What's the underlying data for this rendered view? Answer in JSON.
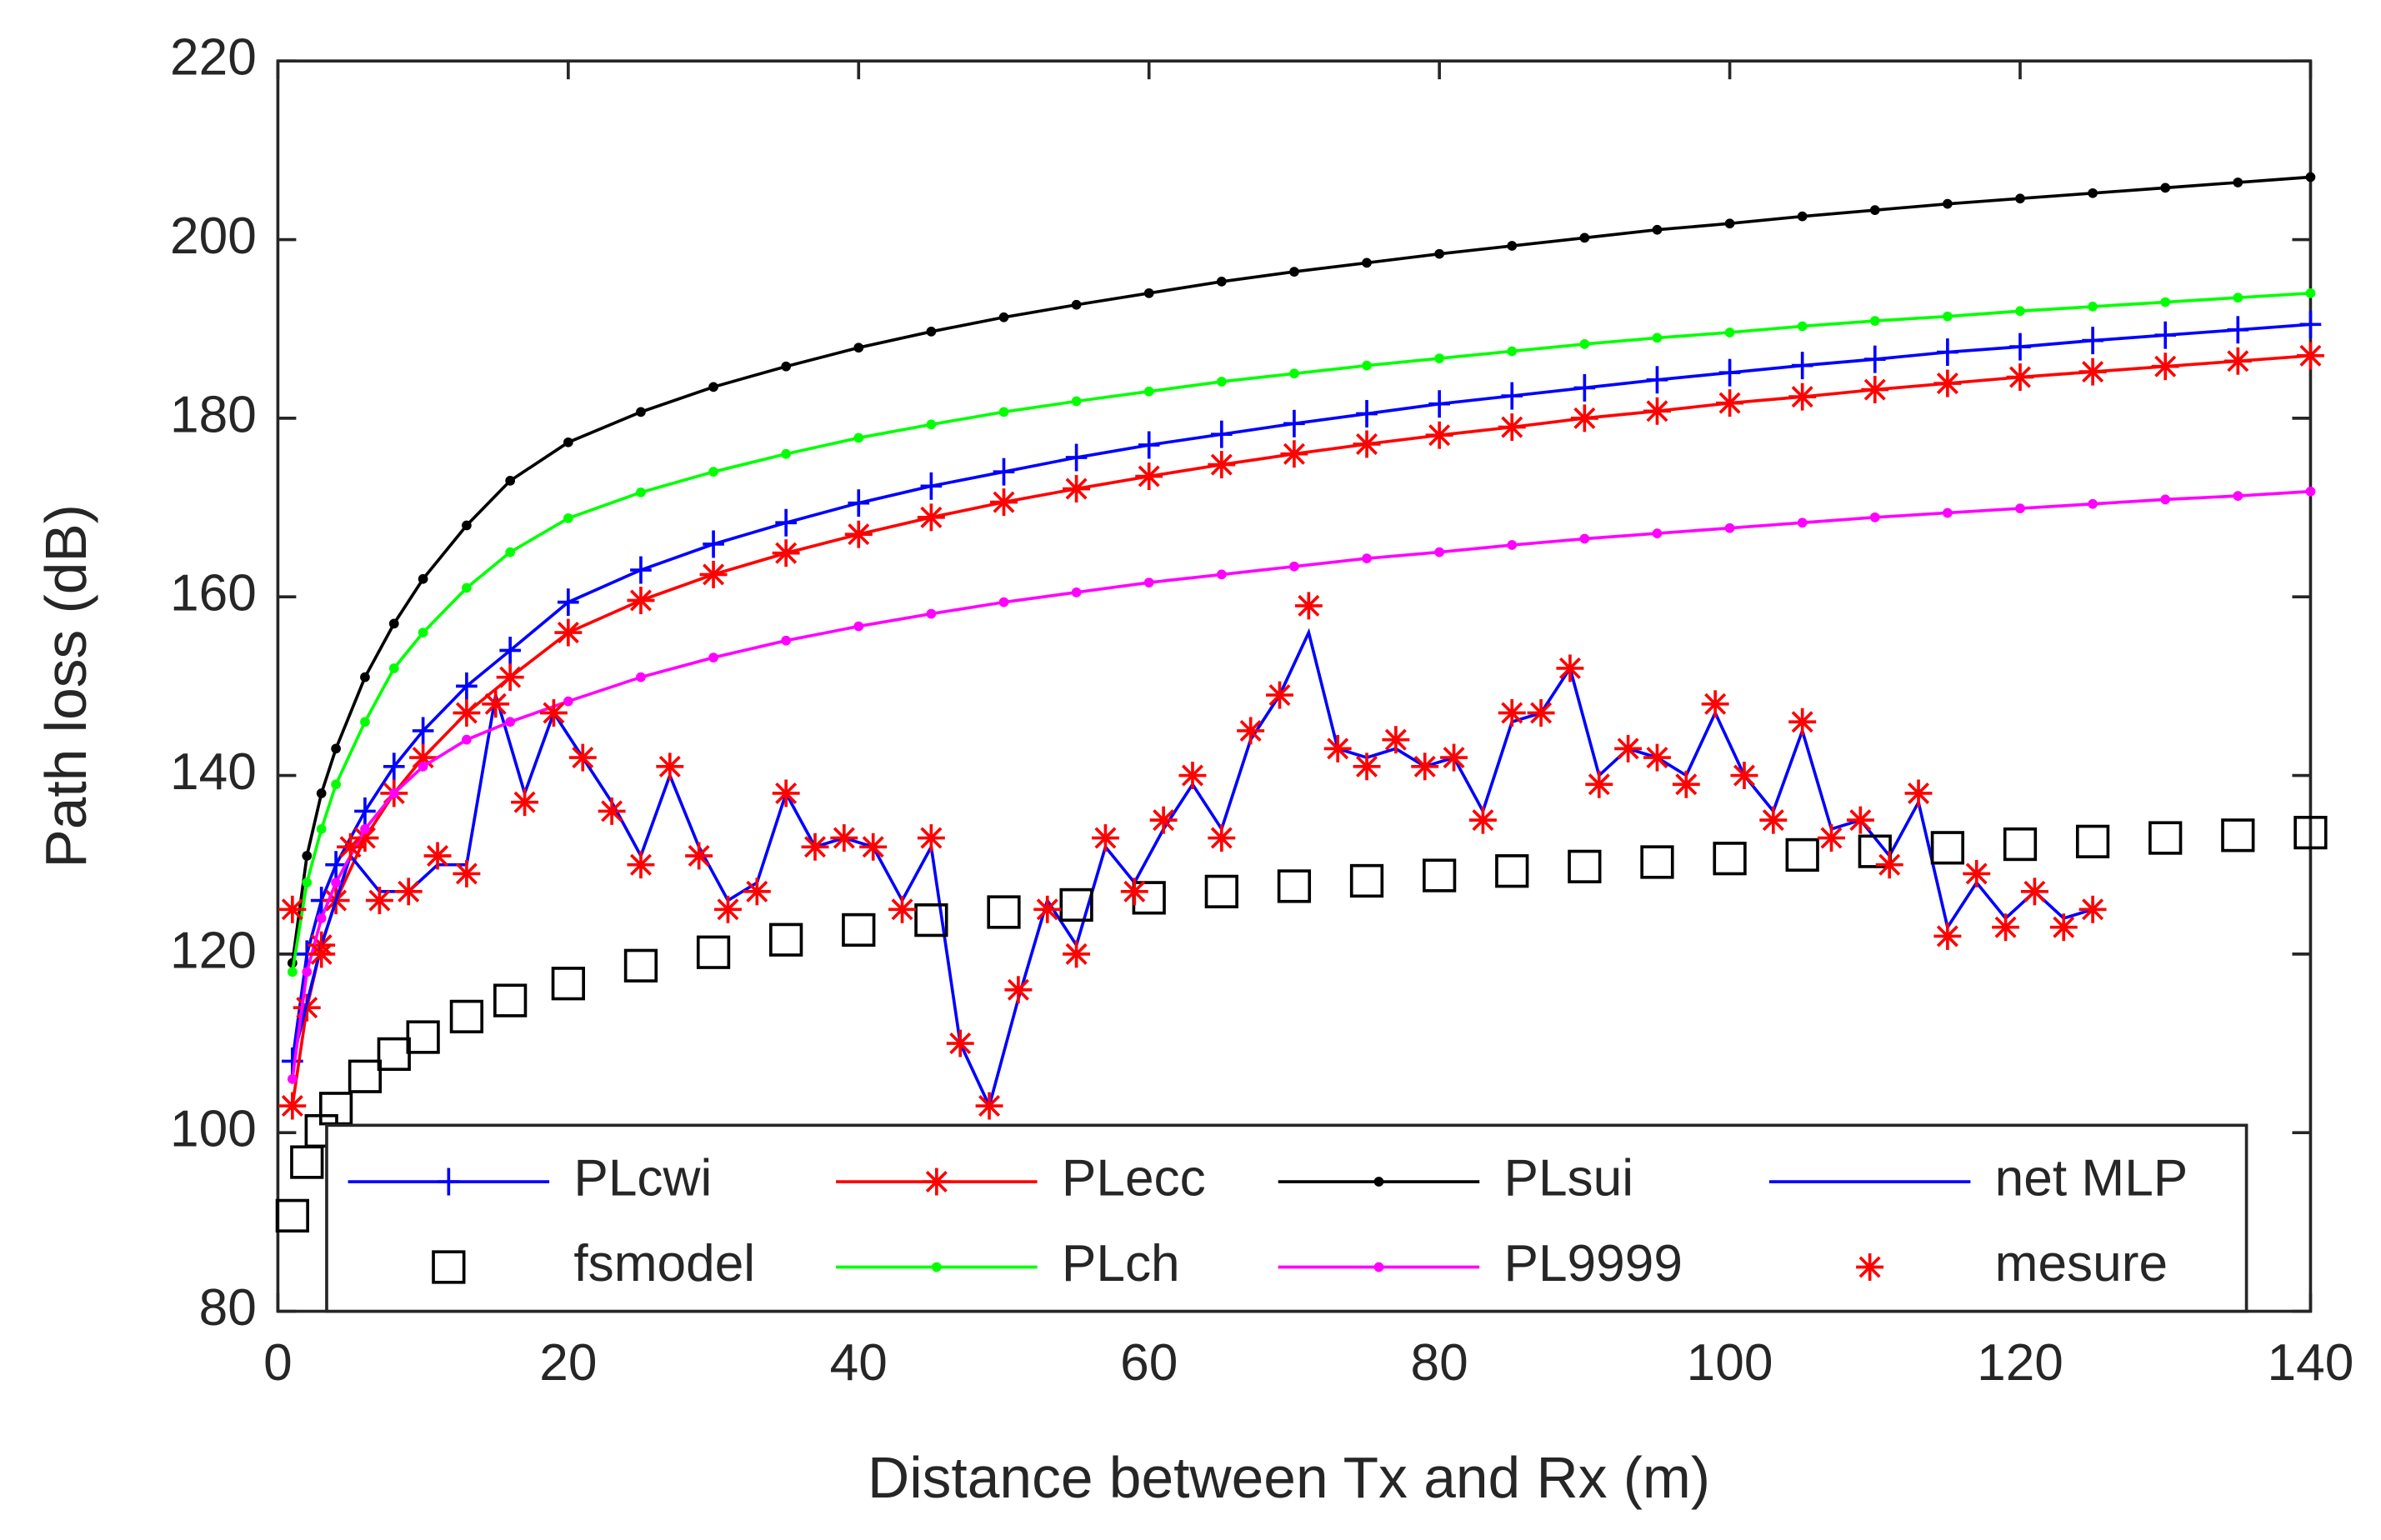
{
  "chart_data": {
    "type": "line",
    "xlabel": "Distance between Tx and Rx (m)",
    "ylabel": "Path loss (dB)",
    "xlim": [
      0,
      140
    ],
    "xticks": [
      0,
      20,
      40,
      60,
      80,
      100,
      120,
      140
    ],
    "ylim": [
      80,
      220
    ],
    "yticks": [
      80,
      100,
      120,
      140,
      160,
      180,
      200,
      220
    ],
    "legend": "south",
    "x": [
      1,
      2,
      3,
      4,
      6,
      8,
      10,
      13,
      16,
      20,
      25,
      30,
      35,
      40,
      45,
      50,
      55,
      60,
      65,
      70,
      75,
      80,
      85,
      90,
      95,
      100,
      105,
      110,
      115,
      120,
      125,
      130,
      135,
      140
    ],
    "series": [
      {
        "name": "PLcwi",
        "color": "#0000ff",
        "marker": "plus",
        "line": true,
        "values": [
          108,
          120,
          126,
          130,
          136,
          141,
          145,
          150,
          154,
          159.4,
          163.0,
          165.9,
          168.3,
          170.5,
          172.4,
          174.0,
          175.6,
          177.0,
          178.2,
          179.4,
          180.5,
          181.6,
          182.5,
          183.4,
          184.3,
          185.1,
          185.9,
          186.6,
          187.4,
          188.0,
          188.7,
          189.3,
          189.9,
          190.5
        ]
      },
      {
        "name": "PLecc",
        "color": "#ff0000",
        "marker": "asterisk",
        "line": true,
        "values": [
          103,
          114,
          121,
          126,
          133,
          138,
          142,
          147,
          151,
          156,
          159.6,
          162.5,
          164.9,
          167.0,
          168.9,
          170.6,
          172.1,
          173.5,
          174.8,
          176.0,
          177.1,
          178.1,
          179.0,
          180.0,
          180.8,
          181.7,
          182.4,
          183.2,
          183.9,
          184.6,
          185.2,
          185.8,
          186.4,
          187.0
        ]
      },
      {
        "name": "PLsui",
        "color": "#000000",
        "marker": "dot",
        "line": true,
        "values": [
          119,
          131,
          138,
          143,
          151,
          157,
          162,
          168,
          173,
          177.3,
          180.7,
          183.5,
          185.8,
          187.9,
          189.7,
          191.3,
          192.7,
          194.0,
          195.3,
          196.4,
          197.4,
          198.4,
          199.3,
          200.2,
          201.1,
          201.8,
          202.6,
          203.3,
          204.0,
          204.6,
          205.2,
          205.8,
          206.4,
          207.0
        ]
      },
      {
        "name": "net MLP",
        "color": "#0000ff",
        "marker": "none",
        "line": true,
        "x": [
          1,
          3,
          5,
          7,
          9,
          11,
          13,
          15,
          17,
          19,
          21,
          23,
          25,
          27,
          29,
          31,
          33,
          35,
          37,
          39,
          41,
          43,
          45,
          47,
          49,
          51,
          53,
          55,
          57,
          59,
          61,
          63,
          65,
          67,
          69,
          71,
          73,
          75,
          77,
          79,
          81,
          83,
          85,
          87,
          89,
          91,
          93,
          95,
          97,
          99,
          101,
          103,
          105,
          107,
          109,
          111,
          113,
          115,
          117,
          119,
          121,
          123,
          125
        ],
        "values": [
          108,
          121,
          131,
          127,
          127,
          130,
          130,
          149,
          138,
          147,
          142,
          137,
          131,
          140,
          132,
          126,
          128,
          138,
          132,
          133,
          132,
          126,
          132,
          110,
          103,
          115,
          126,
          121,
          132,
          128,
          134,
          139,
          134,
          144,
          149,
          156,
          143,
          142,
          143,
          141,
          142,
          136,
          146,
          147,
          152,
          140,
          143,
          142,
          140,
          147,
          140,
          136,
          145,
          134,
          135,
          131,
          137,
          123,
          128,
          124,
          127,
          124,
          125
        ]
      },
      {
        "name": "fsmodel",
        "color": "#000000",
        "marker": "square",
        "line": false,
        "values": [
          90.7,
          96.7,
          100.2,
          102.7,
          106.3,
          108.8,
          110.7,
          113.0,
          114.8,
          116.7,
          118.7,
          120.2,
          121.6,
          122.7,
          123.8,
          124.7,
          125.5,
          126.3,
          127.0,
          127.6,
          128.2,
          128.8,
          129.3,
          129.8,
          130.3,
          130.7,
          131.1,
          131.5,
          131.9,
          132.3,
          132.6,
          133.0,
          133.3,
          133.6
        ]
      },
      {
        "name": "PLch",
        "color": "#00ff00",
        "marker": "dot",
        "line": true,
        "values": [
          118,
          128,
          134,
          139,
          146,
          152,
          156,
          161,
          165,
          168.8,
          171.7,
          174.0,
          176.0,
          177.8,
          179.3,
          180.7,
          181.9,
          183.0,
          184.1,
          185.0,
          185.9,
          186.7,
          187.5,
          188.3,
          189.0,
          189.6,
          190.3,
          190.9,
          191.4,
          192.0,
          192.5,
          193.0,
          193.5,
          194.0
        ]
      },
      {
        "name": "PL9999",
        "color": "#ff00ff",
        "marker": "dot",
        "line": true,
        "values": [
          106,
          118,
          124,
          128,
          134,
          138,
          141,
          144,
          146,
          148.3,
          151.0,
          153.2,
          155.1,
          156.7,
          158.1,
          159.4,
          160.5,
          161.6,
          162.5,
          163.4,
          164.3,
          165.0,
          165.8,
          166.5,
          167.1,
          167.7,
          168.3,
          168.9,
          169.4,
          169.9,
          170.4,
          170.9,
          171.3,
          171.8
        ]
      },
      {
        "name": "mesure",
        "color": "#ff0000",
        "marker": "asterisk",
        "line": false,
        "x": [
          1,
          3,
          5,
          7,
          9,
          11,
          13,
          15,
          17,
          19,
          21,
          23,
          25,
          27,
          29,
          31,
          33,
          35,
          37,
          39,
          41,
          43,
          45,
          47,
          49,
          51,
          53,
          55,
          57,
          59,
          61,
          63,
          65,
          67,
          69,
          71,
          73,
          75,
          77,
          79,
          81,
          83,
          85,
          87,
          89,
          91,
          93,
          95,
          97,
          99,
          101,
          103,
          105,
          107,
          109,
          111,
          113,
          115,
          117,
          119,
          121,
          123,
          125
        ],
        "values": [
          125,
          120,
          132,
          126,
          127,
          131,
          129,
          148,
          137,
          147,
          142,
          136,
          130,
          141,
          131,
          125,
          127,
          138,
          132,
          133,
          132,
          125,
          133,
          110,
          103,
          116,
          125,
          120,
          133,
          127,
          135,
          140,
          133,
          145,
          149,
          159,
          143,
          141,
          144,
          141,
          142,
          135,
          147,
          147,
          152,
          139,
          143,
          142,
          139,
          148,
          140,
          135,
          146,
          133,
          135,
          130,
          138,
          122,
          129,
          123,
          127,
          123,
          125
        ]
      }
    ]
  }
}
